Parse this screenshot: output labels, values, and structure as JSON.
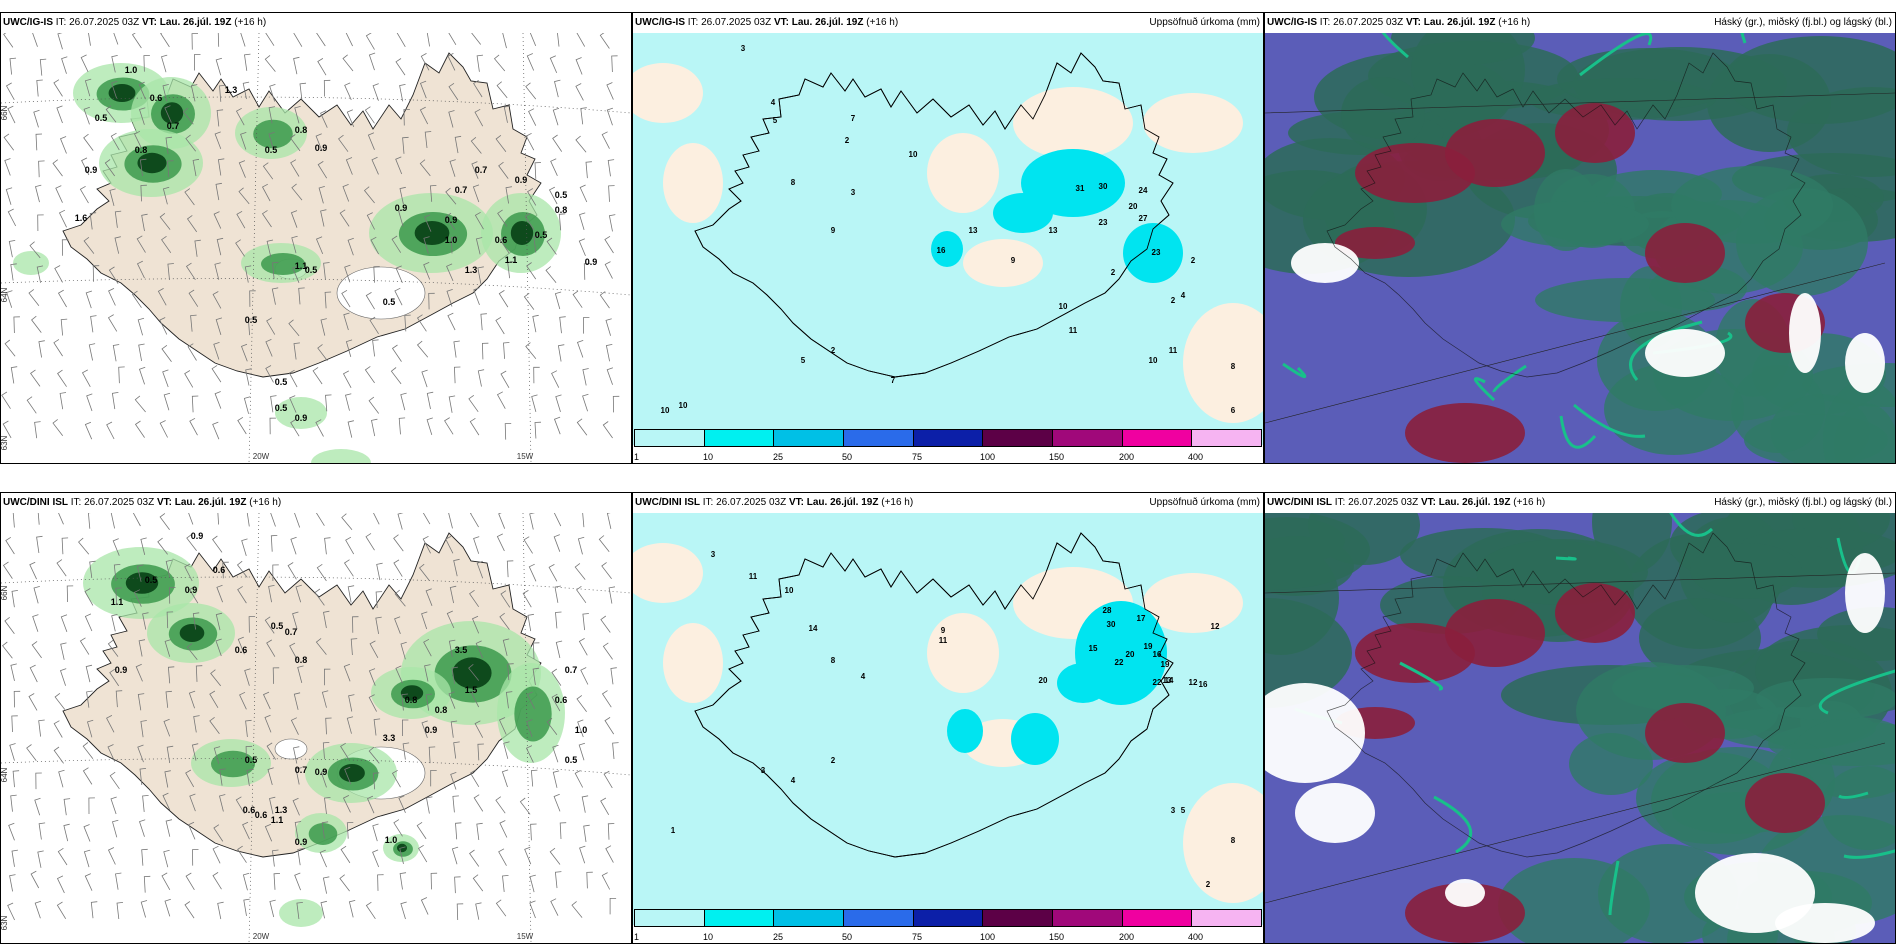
{
  "panels": {
    "p1": {
      "model": "UWC/IG-IS",
      "it_label": "IT:",
      "it": "26.07.2025 03Z",
      "vt_label": "VT:",
      "vt": "Lau. 26.júl. 19Z",
      "lead": "(+16 h)"
    },
    "p2": {
      "model": "UWC/IG-IS",
      "it_label": "IT:",
      "it": "26.07.2025 03Z",
      "vt_label": "VT:",
      "vt": "Lau. 26.júl. 19Z",
      "lead": "(+16 h)",
      "title": "Uppsöfnuð úrkoma (mm)"
    },
    "p3": {
      "model": "UWC/IG-IS",
      "it_label": "IT:",
      "it": "26.07.2025 03Z",
      "vt_label": "VT:",
      "vt": "Lau. 26.júl. 19Z",
      "lead": "(+16 h)",
      "title": "Háský (gr.), miðský (fj.bl.) og lágský (bl.)"
    },
    "p4": {
      "model": "UWC/DINI ISL",
      "it_label": "IT:",
      "it": "26.07.2025 03Z",
      "vt_label": "VT:",
      "vt": "Lau. 26.júl. 19Z",
      "lead": "(+16 h)"
    },
    "p5": {
      "model": "UWC/DINI ISL",
      "it_label": "IT:",
      "it": "26.07.2025 03Z",
      "vt_label": "VT:",
      "vt": "Lau. 26.júl. 19Z",
      "lead": "(+16 h)",
      "title": "Uppsöfnuð úrkoma (mm)"
    },
    "p6": {
      "model": "UWC/DINI ISL",
      "it_label": "IT:",
      "it": "26.07.2025 03Z",
      "vt_label": "VT:",
      "vt": "Lau. 26.júl. 19Z",
      "lead": "(+16 h)",
      "title": "Háský (gr.), miðský (fj.bl.) og lágský (bl.)"
    }
  },
  "axes": {
    "lat_66": "66N",
    "lat_64": "64N",
    "lat_63": "63N",
    "lon_20": "20W",
    "lon_15": "15W"
  },
  "colorbar": {
    "labels": [
      "1",
      "10",
      "25",
      "50",
      "75",
      "100",
      "150",
      "200",
      "400"
    ],
    "colors": [
      "#b9f6f6",
      "#00f0f0",
      "#00c0e6",
      "#2a6bea",
      "#0c1fa8",
      "#5c0046",
      "#a0087a",
      "#f000a0",
      "#f6b4f2"
    ]
  },
  "labels": {
    "p1": [
      "1.0",
      "1.3",
      "0.6",
      "0.5",
      "0.7",
      "0.9",
      "0.8",
      "0.8",
      "0.9",
      "0.5",
      "1.6",
      "0.7",
      "0.7",
      "1.0",
      "0.6",
      "0.9",
      "1.1",
      "0.5",
      "0.9",
      "0.9",
      "0.5",
      "0.5",
      "1.1",
      "0.5",
      "0.8",
      "0.5",
      "0.9",
      "1.3",
      "0.5",
      "0.5",
      "0.9"
    ],
    "p2": [
      "3",
      "4",
      "5",
      "7",
      "2",
      "10",
      "8",
      "3",
      "9",
      "13",
      "31",
      "30",
      "24",
      "20",
      "27",
      "23",
      "23",
      "16",
      "9",
      "13",
      "2",
      "4",
      "10",
      "11",
      "10",
      "11",
      "8",
      "6",
      "2",
      "5",
      "7",
      "10",
      "10",
      "2",
      "2"
    ],
    "p4": [
      "0.9",
      "0.6",
      "0.5",
      "0.9",
      "1.1",
      "0.5",
      "0.8",
      "0.9",
      "0.6",
      "0.7",
      "0.8",
      "0.8",
      "1.5",
      "0.9",
      "3.3",
      "0.7",
      "0.6",
      "1.0",
      "0.5",
      "0.7",
      "1.3",
      "0.6",
      "1.1",
      "0.9",
      "0.5",
      "0.9",
      "0.6",
      "1.0",
      "3.5"
    ],
    "p5": [
      "3",
      "11",
      "10",
      "14",
      "8",
      "4",
      "9",
      "11",
      "28",
      "30",
      "17",
      "19",
      "20",
      "22",
      "16",
      "19",
      "12",
      "12",
      "14",
      "22",
      "13",
      "16",
      "20",
      "15",
      "2",
      "3",
      "4",
      "1",
      "5",
      "8",
      "2",
      "3"
    ]
  }
}
